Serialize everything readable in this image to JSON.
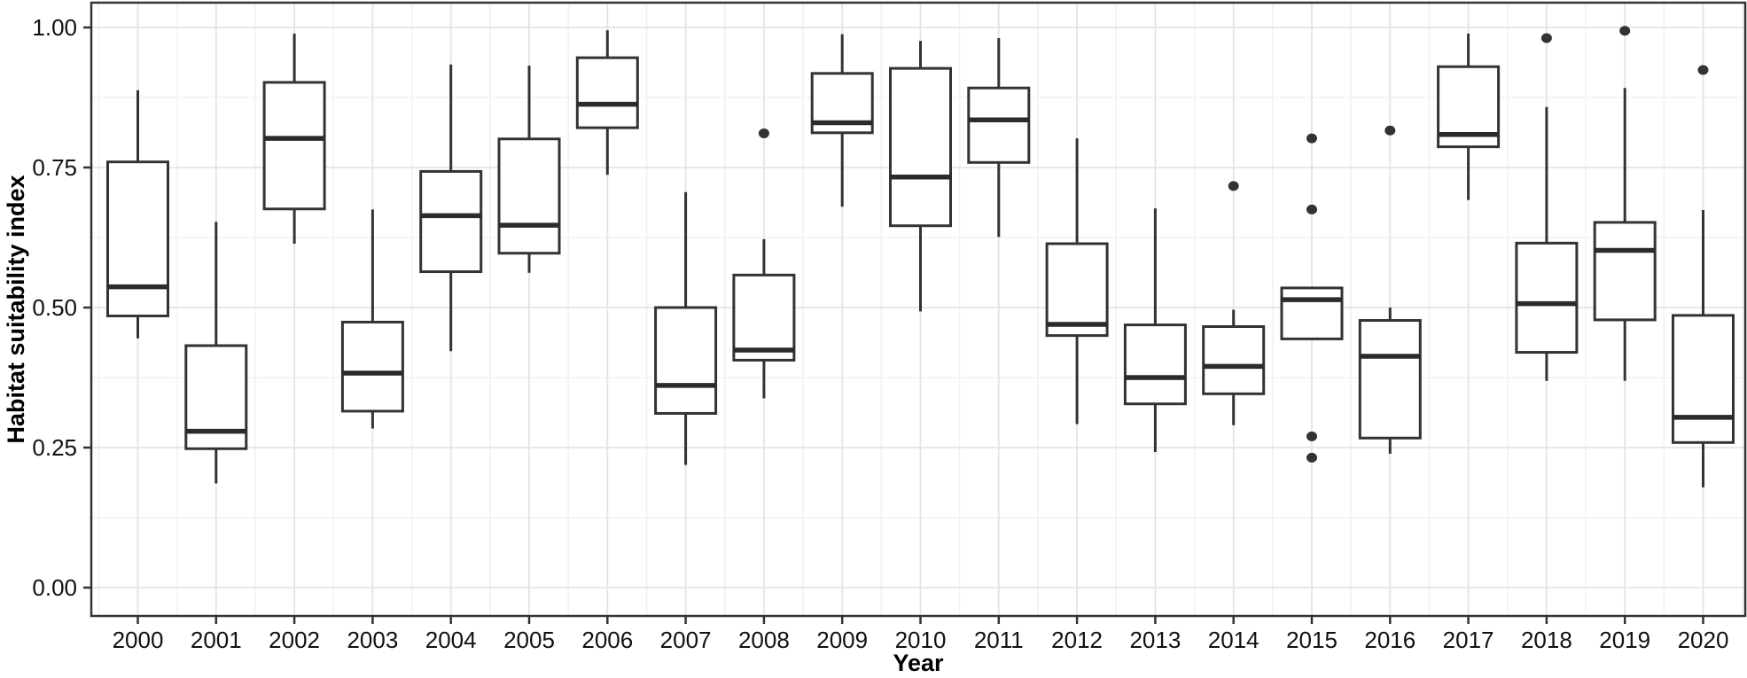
{
  "figure": {
    "kind": "boxplot-figure",
    "background": "#ffffff"
  },
  "chart_data": {
    "type": "boxplot",
    "title": "",
    "xlabel": "Year",
    "ylabel": "Habitat suitability index",
    "categories": [
      "2000",
      "2001",
      "2002",
      "2003",
      "2004",
      "2005",
      "2006",
      "2007",
      "2008",
      "2009",
      "2010",
      "2011",
      "2012",
      "2013",
      "2014",
      "2015",
      "2016",
      "2017",
      "2018",
      "2019",
      "2020"
    ],
    "ylim": [
      0.0,
      1.0
    ],
    "y_ticks": [
      0.0,
      0.25,
      0.5,
      0.75,
      1.0
    ],
    "y_tick_labels": [
      "0.00",
      "0.25",
      "0.50",
      "0.75",
      "1.00"
    ],
    "y_minor_ticks": [
      0.125,
      0.375,
      0.625,
      0.875
    ],
    "grid": "major-and-minor",
    "legend": "none",
    "boxes": [
      {
        "year": "2000",
        "whisker_low": 0.445,
        "q1": 0.485,
        "median": 0.537,
        "q3": 0.76,
        "whisker_high": 0.888,
        "outliers": []
      },
      {
        "year": "2001",
        "whisker_low": 0.186,
        "q1": 0.248,
        "median": 0.279,
        "q3": 0.432,
        "whisker_high": 0.653,
        "outliers": []
      },
      {
        "year": "2002",
        "whisker_low": 0.614,
        "q1": 0.676,
        "median": 0.802,
        "q3": 0.902,
        "whisker_high": 0.989,
        "outliers": []
      },
      {
        "year": "2003",
        "whisker_low": 0.284,
        "q1": 0.315,
        "median": 0.383,
        "q3": 0.474,
        "whisker_high": 0.675,
        "outliers": []
      },
      {
        "year": "2004",
        "whisker_low": 0.422,
        "q1": 0.564,
        "median": 0.664,
        "q3": 0.743,
        "whisker_high": 0.934,
        "outliers": []
      },
      {
        "year": "2005",
        "whisker_low": 0.562,
        "q1": 0.597,
        "median": 0.647,
        "q3": 0.801,
        "whisker_high": 0.932,
        "outliers": []
      },
      {
        "year": "2006",
        "whisker_low": 0.737,
        "q1": 0.821,
        "median": 0.863,
        "q3": 0.946,
        "whisker_high": 0.995,
        "outliers": []
      },
      {
        "year": "2007",
        "whisker_low": 0.219,
        "q1": 0.311,
        "median": 0.361,
        "q3": 0.5,
        "whisker_high": 0.706,
        "outliers": []
      },
      {
        "year": "2008",
        "whisker_low": 0.338,
        "q1": 0.406,
        "median": 0.424,
        "q3": 0.558,
        "whisker_high": 0.622,
        "outliers": [
          0.811
        ]
      },
      {
        "year": "2009",
        "whisker_low": 0.68,
        "q1": 0.812,
        "median": 0.83,
        "q3": 0.918,
        "whisker_high": 0.988,
        "outliers": []
      },
      {
        "year": "2010",
        "whisker_low": 0.493,
        "q1": 0.646,
        "median": 0.733,
        "q3": 0.927,
        "whisker_high": 0.976,
        "outliers": []
      },
      {
        "year": "2011",
        "whisker_low": 0.626,
        "q1": 0.759,
        "median": 0.835,
        "q3": 0.892,
        "whisker_high": 0.981,
        "outliers": []
      },
      {
        "year": "2012",
        "whisker_low": 0.292,
        "q1": 0.45,
        "median": 0.47,
        "q3": 0.614,
        "whisker_high": 0.802,
        "outliers": []
      },
      {
        "year": "2013",
        "whisker_low": 0.242,
        "q1": 0.328,
        "median": 0.375,
        "q3": 0.469,
        "whisker_high": 0.677,
        "outliers": []
      },
      {
        "year": "2014",
        "whisker_low": 0.29,
        "q1": 0.346,
        "median": 0.395,
        "q3": 0.466,
        "whisker_high": 0.496,
        "outliers": [
          0.717
        ]
      },
      {
        "year": "2015",
        "whisker_low": 0.444,
        "q1": 0.444,
        "median": 0.514,
        "q3": 0.535,
        "whisker_high": 0.535,
        "outliers": [
          0.802,
          0.675,
          0.27,
          0.232
        ]
      },
      {
        "year": "2016",
        "whisker_low": 0.239,
        "q1": 0.267,
        "median": 0.413,
        "q3": 0.477,
        "whisker_high": 0.5,
        "outliers": [
          0.816
        ]
      },
      {
        "year": "2017",
        "whisker_low": 0.692,
        "q1": 0.787,
        "median": 0.809,
        "q3": 0.93,
        "whisker_high": 0.989,
        "outliers": []
      },
      {
        "year": "2018",
        "whisker_low": 0.369,
        "q1": 0.42,
        "median": 0.507,
        "q3": 0.615,
        "whisker_high": 0.858,
        "outliers": [
          0.981
        ]
      },
      {
        "year": "2019",
        "whisker_low": 0.369,
        "q1": 0.478,
        "median": 0.602,
        "q3": 0.652,
        "whisker_high": 0.892,
        "outliers": [
          0.994
        ]
      },
      {
        "year": "2020",
        "whisker_low": 0.179,
        "q1": 0.259,
        "median": 0.304,
        "q3": 0.486,
        "whisker_high": 0.674,
        "outliers": [
          0.924
        ]
      }
    ]
  },
  "style": {
    "box_stroke": "#333333",
    "median_stroke": "#2b2b2b",
    "outlier_fill": "#333333",
    "panel_border": "#333333",
    "grid_major": "#e4e4e4",
    "grid_minor": "#f1f1f1",
    "tick_color": "#333333",
    "text_color": "#111111",
    "panel_background": "#ffffff"
  }
}
